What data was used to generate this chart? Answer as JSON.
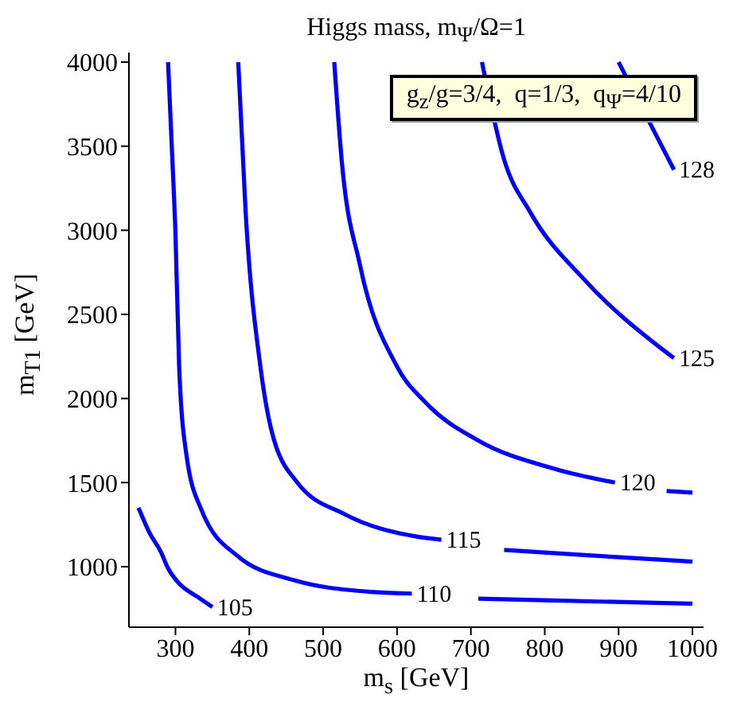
{
  "chart_data": {
    "type": "line",
    "title": "Higgs mass, m$_{Ψ}$/Ω=1",
    "xlabel": "m$_{s}$ [GeV]",
    "ylabel": "m$_{T1}$ [GeV]",
    "annotations": [
      "g$_{z}$/g=3/4,  q=1/3,  q$_{Ψ}$=4/10"
    ],
    "xlim": [
      237,
      1015
    ],
    "ylim": [
      640,
      4057
    ],
    "xticks": [
      300,
      400,
      500,
      600,
      700,
      800,
      900,
      1000
    ],
    "yticks": [
      1000,
      1500,
      2000,
      2500,
      3000,
      3500,
      4000
    ],
    "marker": "none",
    "line_style": "solid",
    "series": [
      {
        "name": "105",
        "color": "#0000ff",
        "x": [
          250,
          265,
          280,
          290,
          305,
          330,
          350
        ],
        "values": [
          1350,
          1200,
          1090,
          990,
          900,
          820,
          760
        ]
      },
      {
        "name": "110",
        "color": "#0000ff",
        "x": [
          290,
          295,
          300,
          305,
          315,
          335,
          385,
          460,
          565,
          620,
          665,
          710,
          800,
          1000
        ],
        "values": [
          4000,
          3500,
          2980,
          2190,
          1660,
          1340,
          1060,
          920,
          850,
          840,
          null,
          810,
          800,
          780
        ]
      },
      {
        "name": "115",
        "color": "#0000ff",
        "x": [
          385,
          395,
          415,
          430,
          465,
          530,
          625,
          660,
          705,
          745,
          850,
          1000
        ],
        "values": [
          4000,
          3110,
          2190,
          1810,
          1500,
          1310,
          1180,
          1160,
          null,
          1100,
          1070,
          1030
        ]
      },
      {
        "name": "120",
        "color": "#0000ff",
        "x": [
          515,
          525,
          550,
          600,
          640,
          710,
          815,
          895,
          930,
          965,
          1000
        ],
        "values": [
          4000,
          3420,
          2790,
          2190,
          1970,
          1750,
          1580,
          1500,
          null,
          1450,
          1440
        ]
      },
      {
        "name": "125",
        "color": "#0000ff",
        "x": [
          715,
          745,
          780,
          855,
          960,
          975
        ],
        "values": [
          4000,
          3420,
          3110,
          2700,
          2290,
          2240
        ]
      },
      {
        "name": "128",
        "color": "#0000ff",
        "x": [
          900,
          955,
          975
        ],
        "values": [
          4000,
          3530,
          3360
        ]
      }
    ]
  }
}
